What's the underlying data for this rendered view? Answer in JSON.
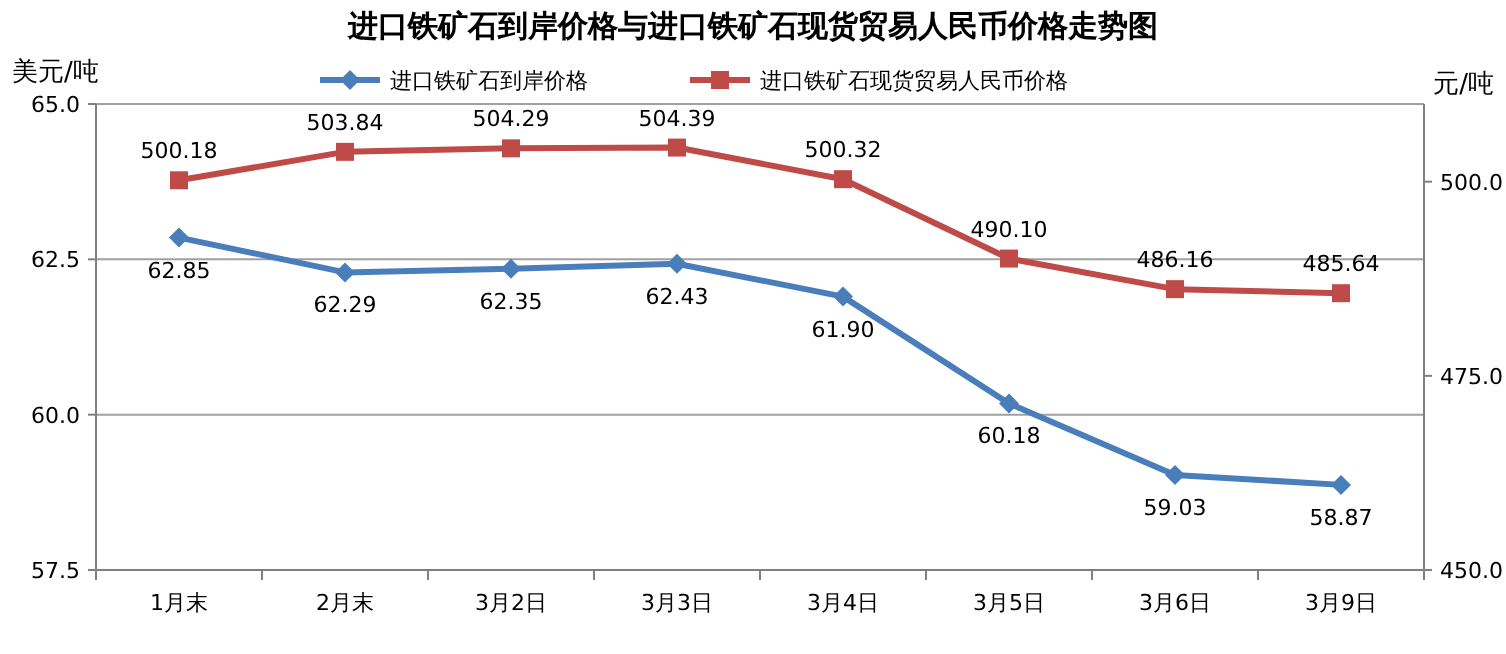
{
  "chart_data": {
    "type": "line",
    "title": "进口铁矿石到岸价格与进口铁矿石现货贸易人民币价格走势图",
    "ylabel": "美元/吨",
    "y2label": "元/吨",
    "categories": [
      "1月末",
      "2月末",
      "3月2日",
      "3月3日",
      "3月4日",
      "3月5日",
      "3月6日",
      "3月9日"
    ],
    "series": [
      {
        "name": "进口铁矿石到岸价格",
        "color": "#4a7ebb",
        "marker": "diamond",
        "values": [
          62.85,
          62.29,
          62.35,
          62.43,
          61.9,
          60.18,
          59.03,
          58.87
        ],
        "value_labels": [
          "62.85",
          "62.29",
          "62.35",
          "62.43",
          "61.90",
          "60.18",
          "59.03",
          "58.87"
        ]
      },
      {
        "name": "进口铁矿石现货贸易人民币价格",
        "color": "#be4b48",
        "marker": "square",
        "axis": "y2",
        "values": [
          500.18,
          503.84,
          504.29,
          504.39,
          500.32,
          490.1,
          486.16,
          485.64
        ],
        "value_labels": [
          "500.18",
          "503.84",
          "504.29",
          "504.39",
          "500.32",
          "490.10",
          "486.16",
          "485.64"
        ]
      }
    ],
    "ylim": [
      57.5,
      65
    ],
    "yticks": [
      {
        "value": 57.5,
        "label": "57.5"
      },
      {
        "value": 60,
        "label": "60.0"
      },
      {
        "value": 62.5,
        "label": "62.5"
      },
      {
        "value": 65,
        "label": "65.0"
      }
    ],
    "y2lim": [
      450,
      510
    ],
    "y2ticks": [
      {
        "value": 450,
        "label": "450.0"
      },
      {
        "value": 475,
        "label": "475.0"
      },
      {
        "value": 500,
        "label": "500.0"
      }
    ],
    "grid": "y",
    "legend": "top"
  }
}
